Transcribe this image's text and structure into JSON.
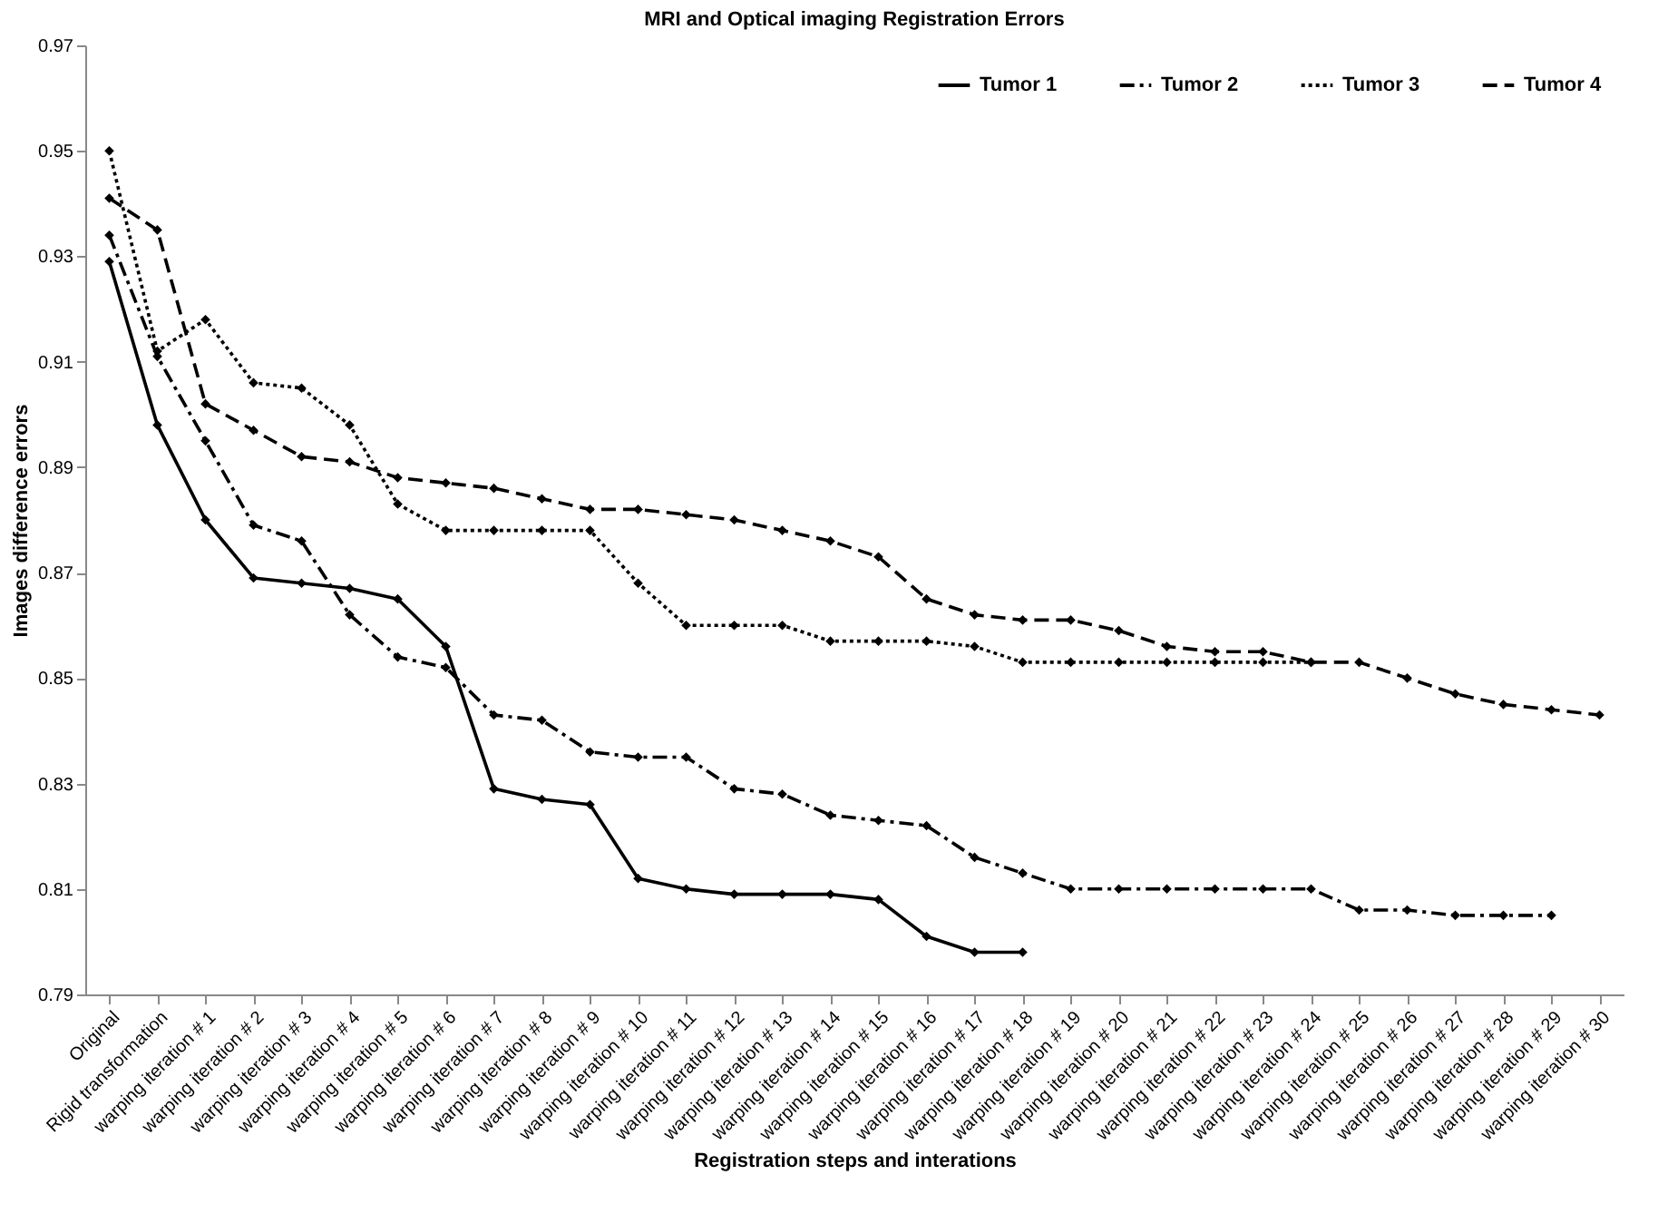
{
  "chart_data": {
    "type": "line",
    "title": "MRI and Optical imaging Registration Errors",
    "xlabel": "Registration steps and interations",
    "ylabel": "Images difference errors",
    "categories": [
      "Original",
      "Rigid transformation",
      "warping iteration # 1",
      "warping iteration # 2",
      "warping iteration # 3",
      "warping iteration # 4",
      "warping iteration # 5",
      "warping iteration # 6",
      "warping iteration # 7",
      "warping iteration # 8",
      "warping iteration # 9",
      "warping iteration # 10",
      "warping iteration # 11",
      "warping iteration # 12",
      "warping iteration # 13",
      "warping iteration # 14",
      "warping iteration # 15",
      "warping iteration # 16",
      "warping iteration # 17",
      "warping iteration # 18",
      "warping iteration # 19",
      "warping iteration # 20",
      "warping iteration # 21",
      "warping iteration # 22",
      "warping iteration # 23",
      "warping iteration # 24",
      "warping iteration # 25",
      "warping iteration # 26",
      "warping iteration # 27",
      "warping iteration # 28",
      "warping iteration # 29",
      "warping iteration # 30"
    ],
    "series": [
      {
        "name": "Tumor 1",
        "color": "#000000",
        "line_style": "solid",
        "values": [
          0.929,
          0.898,
          0.88,
          0.869,
          0.868,
          0.867,
          0.865,
          0.856,
          0.829,
          0.827,
          0.826,
          0.812,
          0.81,
          0.809,
          0.809,
          0.809,
          0.808,
          0.801,
          0.798,
          0.798,
          null,
          null,
          null,
          null,
          null,
          null,
          null,
          null,
          null,
          null,
          null,
          null
        ]
      },
      {
        "name": "Tumor 2",
        "color": "#000000",
        "line_style": "dashdot",
        "values": [
          0.934,
          0.911,
          0.895,
          0.879,
          0.876,
          0.862,
          0.854,
          0.852,
          0.843,
          0.842,
          0.836,
          0.835,
          0.835,
          0.829,
          0.828,
          0.824,
          0.823,
          0.822,
          0.816,
          0.813,
          0.81,
          0.81,
          0.81,
          0.81,
          0.81,
          0.81,
          0.806,
          0.806,
          0.805,
          0.805,
          0.805,
          null
        ]
      },
      {
        "name": "Tumor 3",
        "color": "#000000",
        "line_style": "dotted",
        "values": [
          0.95,
          0.912,
          0.918,
          0.906,
          0.905,
          0.898,
          0.883,
          0.878,
          0.878,
          0.878,
          0.878,
          0.868,
          0.86,
          0.86,
          0.86,
          0.857,
          0.857,
          0.857,
          0.856,
          0.853,
          0.853,
          0.853,
          0.853,
          0.853,
          0.853,
          0.853,
          null,
          null,
          null,
          null,
          null,
          null
        ]
      },
      {
        "name": "Tumor 4",
        "color": "#000000",
        "line_style": "dashed",
        "values": [
          0.941,
          0.935,
          0.902,
          0.897,
          0.892,
          0.891,
          0.888,
          0.887,
          0.886,
          0.884,
          0.882,
          0.882,
          0.881,
          0.88,
          0.878,
          0.876,
          0.873,
          0.865,
          0.862,
          0.861,
          0.861,
          0.859,
          0.856,
          0.855,
          0.855,
          0.853,
          0.853,
          0.85,
          0.847,
          0.845,
          0.844,
          0.843
        ]
      }
    ],
    "ylim": [
      0.79,
      0.97
    ],
    "yticks": [
      0.79,
      0.81,
      0.83,
      0.85,
      0.87,
      0.89,
      0.91,
      0.93,
      0.95,
      0.97
    ],
    "grid": false,
    "legend": "top right",
    "marker": "diamond"
  }
}
